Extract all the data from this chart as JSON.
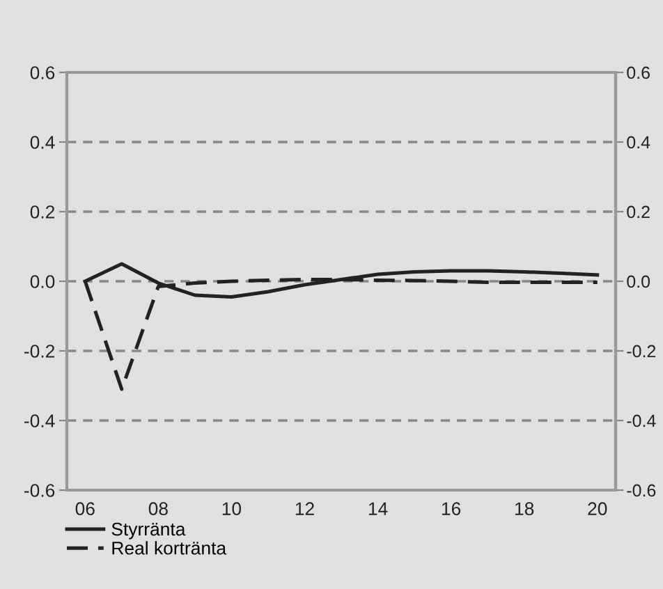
{
  "chart_data": {
    "type": "line",
    "categories": [
      "06",
      null,
      "08",
      null,
      "10",
      null,
      "12",
      null,
      "14",
      null,
      "16",
      null,
      "18",
      null,
      "20"
    ],
    "series": [
      {
        "name": "Styrränta",
        "color": "#222222",
        "line_style": "solid",
        "values": [
          0,
          0.05,
          -0.005,
          -0.04,
          -0.045,
          -0.03,
          -0.01,
          0.005,
          0.02,
          0.027,
          0.03,
          0.03,
          0.027,
          0.023,
          0.018
        ]
      },
      {
        "name": "Real kortränta",
        "color": "#222222",
        "line_style": "dashed",
        "values": [
          0,
          -0.31,
          -0.015,
          -0.005,
          0.0,
          0.003,
          0.005,
          0.005,
          0.003,
          0.002,
          0.0,
          -0.003,
          -0.003,
          -0.003,
          -0.003
        ]
      }
    ],
    "ylim": [
      -0.6,
      0.6
    ],
    "yticks": [
      -0.6,
      -0.4,
      -0.2,
      {
        "value": 0,
        "label": "0.0"
      },
      0.2,
      0.4,
      0.6
    ],
    "y2lim": [
      -0.6,
      0.6
    ],
    "y2ticks": [
      -0.6,
      -0.4,
      -0.2,
      {
        "value": 0,
        "label": "0.0"
      },
      0.2,
      0.4,
      0.6
    ],
    "grid": "y",
    "legend": "bottom left",
    "marker": "none"
  }
}
